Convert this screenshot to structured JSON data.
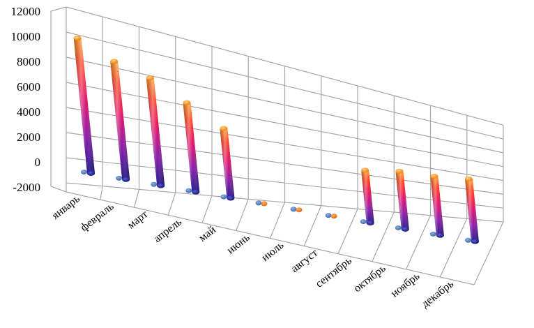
{
  "chart_data": {
    "type": "bar",
    "style": "3d-cylinder",
    "categories": [
      "январь",
      "февраль",
      "март",
      "апрель",
      "май",
      "июнь",
      "июль",
      "август",
      "сентябрь",
      "октябрь",
      "ноябрь",
      "декабрь"
    ],
    "series": [
      {
        "values": [
          0,
          0,
          0,
          0,
          0,
          0,
          0,
          0,
          0,
          0,
          0,
          0
        ],
        "color": "#4f81bd"
      },
      {
        "values": [
          11000,
          10000,
          9500,
          8200,
          6700,
          0,
          0,
          0,
          6200,
          7200,
          7800,
          8800
        ],
        "gradient": [
          "#ff9a1f",
          "#ff2a2a",
          "#a020a0",
          "#1a1a90"
        ]
      }
    ],
    "yticks": [
      "12000",
      "10000",
      "8000",
      "6000",
      "4000",
      "2000",
      "0",
      "-2000"
    ],
    "ylim": [
      -2000,
      12000
    ],
    "grid": true,
    "legend": "none"
  }
}
